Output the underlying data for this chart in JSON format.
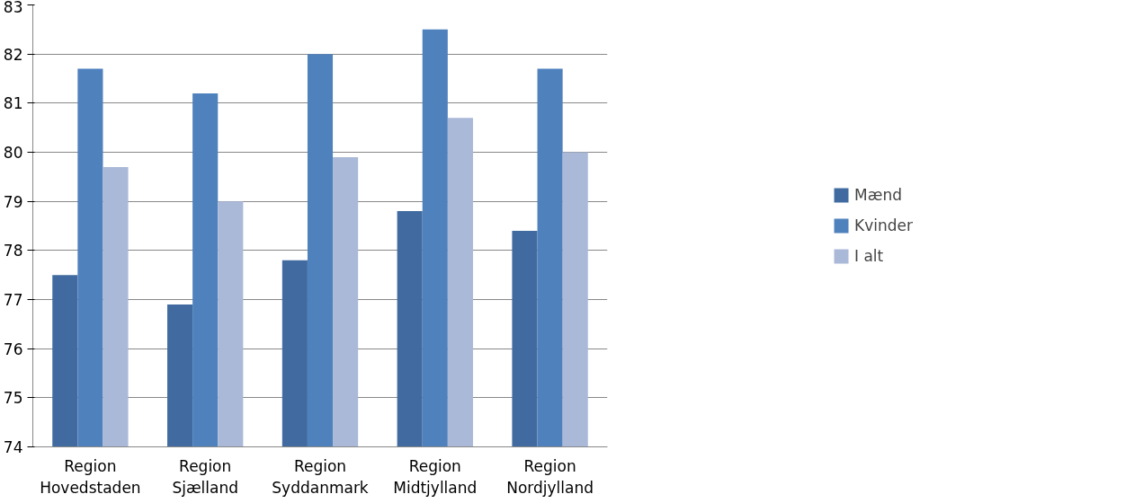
{
  "chart_data": {
    "type": "bar",
    "categories": [
      "Region\nHovedstaden",
      "Region\nSjælland",
      "Region\nSyddanmark",
      "Region\nMidtjylland",
      "Region\nNordjylland"
    ],
    "series": [
      {
        "name": "Mænd",
        "color": "#416ba0",
        "values": [
          77.5,
          76.9,
          77.8,
          78.8,
          78.4
        ]
      },
      {
        "name": "Kvinder",
        "color": "#4f81bd",
        "values": [
          81.7,
          81.2,
          82.0,
          82.5,
          81.7
        ]
      },
      {
        "name": "I alt",
        "color": "#aab9d7",
        "values": [
          79.7,
          79.0,
          79.9,
          80.7,
          80.0
        ]
      }
    ],
    "ylim": [
      74,
      83
    ],
    "yticks": [
      74,
      75,
      76,
      77,
      78,
      79,
      80,
      81,
      82,
      83
    ],
    "grid": "y",
    "legend": "right"
  }
}
